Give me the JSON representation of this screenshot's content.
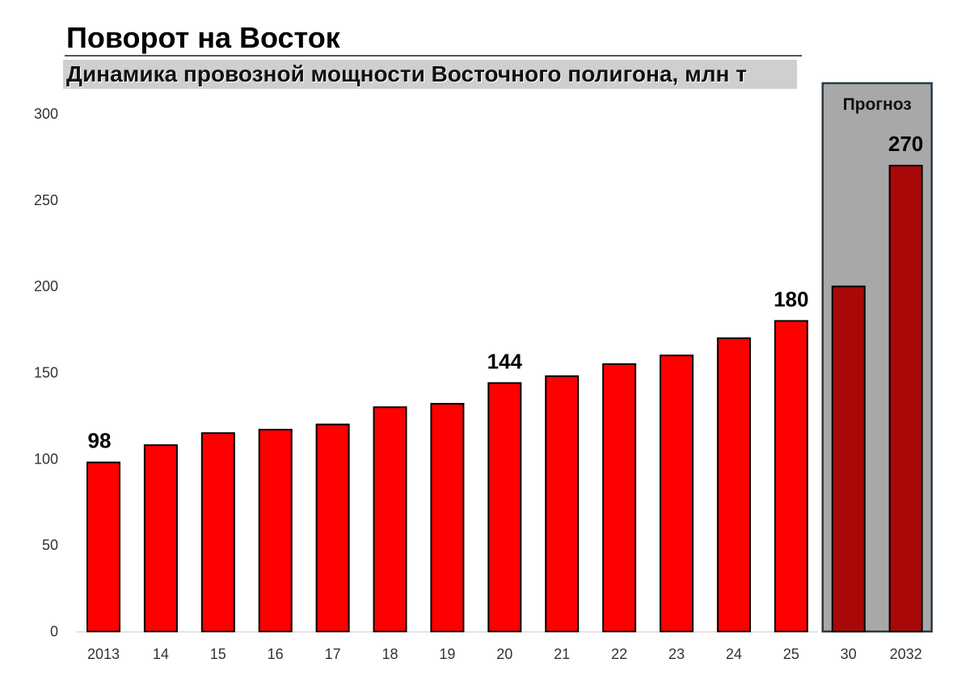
{
  "header": {
    "title": "Поворот на Восток",
    "subtitle": "Динамика провозной мощности Восточного полигона, млн т"
  },
  "forecast": {
    "label": "Прогноз",
    "categories": [
      "30",
      "2032"
    ]
  },
  "colors": {
    "actual_bar": "#ff0000",
    "forecast_bar": "#a80808",
    "forecast_band": "#a8a8a8",
    "forecast_border": "#2a3a44"
  },
  "chart_data": {
    "type": "bar",
    "title": "Поворот на Восток",
    "subtitle": "Динамика провозной мощности Восточного полигона, млн т",
    "categories": [
      "2013",
      "14",
      "15",
      "16",
      "17",
      "18",
      "19",
      "20",
      "21",
      "22",
      "23",
      "24",
      "25",
      "30",
      "2032"
    ],
    "values": [
      98,
      108,
      115,
      117,
      120,
      130,
      132,
      144,
      148,
      155,
      160,
      170,
      180,
      200,
      270
    ],
    "ylim": [
      0,
      300
    ],
    "yticks": [
      0,
      50,
      100,
      150,
      200,
      250,
      300
    ],
    "labeled_values": {
      "2013": "98",
      "20": "144",
      "25": "180",
      "2032": "270"
    },
    "grid": false,
    "legend": "none"
  }
}
